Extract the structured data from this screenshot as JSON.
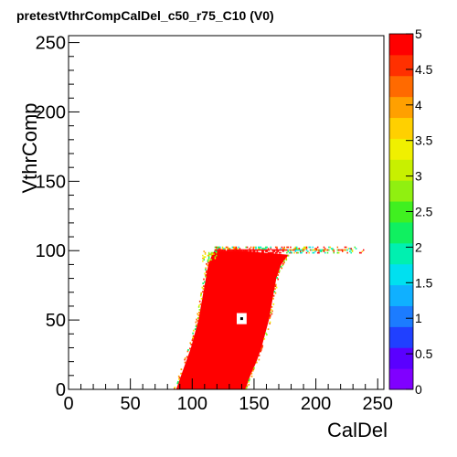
{
  "chart_data": {
    "type": "heatmap",
    "title": "pretestVthrCompCalDel_c50_r75_C10 (V0)",
    "xlabel": "CalDel",
    "ylabel": "VthrComp",
    "xlim": [
      0,
      255
    ],
    "ylim": [
      0,
      255
    ],
    "x_ticks": [
      0,
      50,
      100,
      150,
      200,
      250
    ],
    "y_ticks": [
      0,
      50,
      100,
      150,
      200,
      250
    ],
    "zlim": [
      0,
      5
    ],
    "z_ticks": [
      "0",
      "0.5",
      "1",
      "1.5",
      "2",
      "2.5",
      "3",
      "3.5",
      "4",
      "4.5",
      "5"
    ],
    "palette": [
      "#8000ff",
      "#5a00ff",
      "#2040ff",
      "#1c7cff",
      "#10b0ff",
      "#00e0f0",
      "#00f0b0",
      "#10f060",
      "#40f020",
      "#90f010",
      "#c8f000",
      "#f0f000",
      "#ffd000",
      "#ffa000",
      "#ff6a00",
      "#ff3000",
      "#ff0000"
    ],
    "grid": false,
    "region": {
      "value": 5,
      "description_rows": [
        {
          "y": 0,
          "x_left": 87,
          "x_right": 143
        },
        {
          "y": 10,
          "x_left": 91,
          "x_right": 147
        },
        {
          "y": 20,
          "x_left": 95,
          "x_right": 152
        },
        {
          "y": 30,
          "x_left": 99,
          "x_right": 156
        },
        {
          "y": 40,
          "x_left": 102,
          "x_right": 159
        },
        {
          "y": 50,
          "x_left": 105,
          "x_right": 162
        },
        {
          "y": 60,
          "x_left": 107,
          "x_right": 164
        },
        {
          "y": 70,
          "x_left": 109,
          "x_right": 166
        },
        {
          "y": 80,
          "x_left": 111,
          "x_right": 168
        },
        {
          "y": 90,
          "x_left": 113,
          "x_right": 172
        },
        {
          "y": 97,
          "x_left": 116,
          "x_right": 178
        }
      ],
      "plateau": {
        "y": 100,
        "x_from": 118,
        "x_to": 240
      },
      "hole": {
        "x": 140,
        "y": 51
      }
    }
  }
}
